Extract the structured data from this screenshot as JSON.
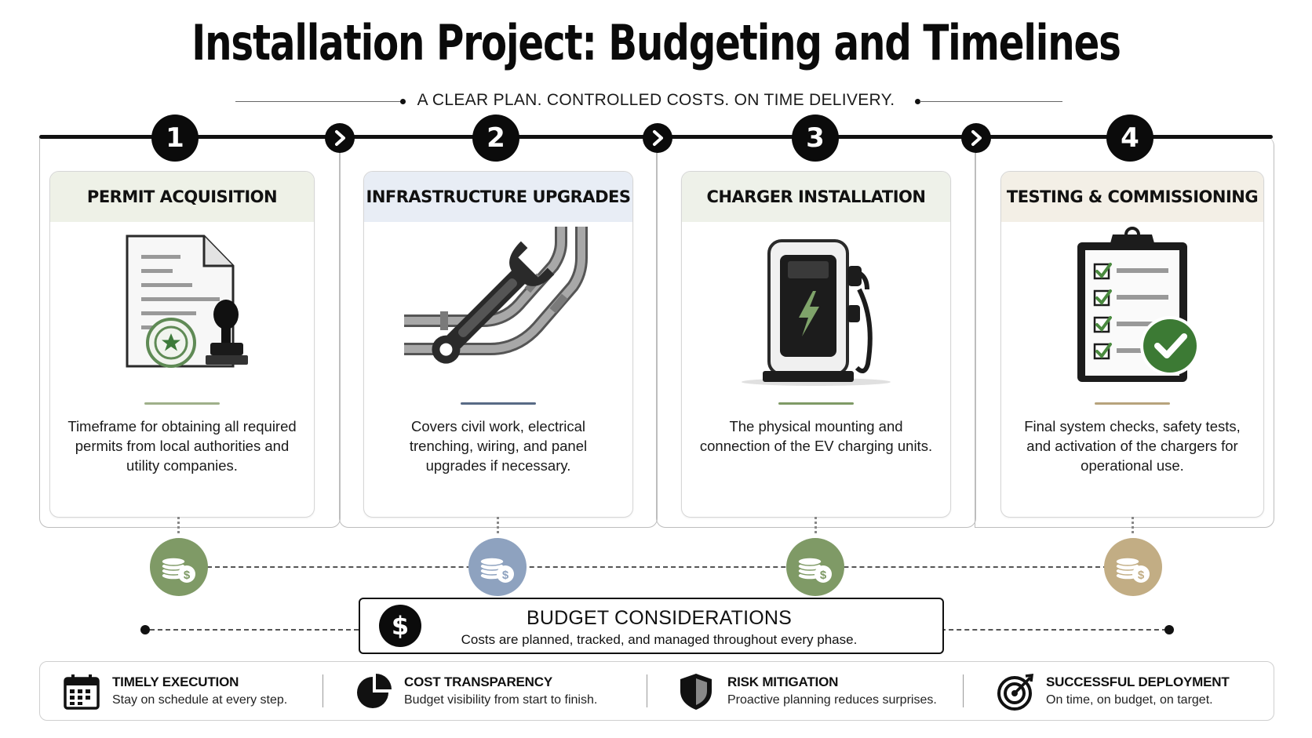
{
  "title": "Installation Project: Budgeting and Timelines",
  "subtitle": "A CLEAR PLAN. CONTROLLED COSTS. ON TIME DELIVERY.",
  "colors": {
    "green": "#7f9a66",
    "blue": "#8ea2bf",
    "tan": "#c2ad84",
    "ink": "#0b0b0b"
  },
  "steps": [
    {
      "number": "1",
      "title": "PERMIT ACQUISITION",
      "icon": "permit-document-stamp-icon",
      "description": "Timeframe for obtaining all required permits from local authorities and utility companies.",
      "head_color": "#eef1e7",
      "accent": "#9fb08a",
      "coin_color": "#7f9a66"
    },
    {
      "number": "2",
      "title": "INFRASTRUCTURE UPGRADES",
      "icon": "wrench-pipes-icon",
      "description": "Covers civil work, electrical trenching, wiring, and panel upgrades if necessary.",
      "head_color": "#e8edf5",
      "accent": "#586a85",
      "coin_color": "#8ea2bf"
    },
    {
      "number": "3",
      "title": "CHARGER INSTALLATION",
      "icon": "ev-charger-icon",
      "description": "The physical mounting and connection of the EV charging units.",
      "head_color": "#eef1e9",
      "accent": "#7f9a66",
      "coin_color": "#7f9a66"
    },
    {
      "number": "4",
      "title": "TESTING & COMMISSIONING",
      "icon": "checklist-clipboard-icon",
      "description": "Final system checks, safety tests, and activation of the chargers for operational use.",
      "head_color": "#f3efe6",
      "accent": "#b7a37c",
      "coin_color": "#c2ad84"
    }
  ],
  "budget": {
    "title": "BUDGET CONSIDERATIONS",
    "subtitle": "Costs are planned, tracked, and managed throughout every phase.",
    "icon": "dollar-icon"
  },
  "footer": [
    {
      "title": "TIMELY EXECUTION",
      "subtitle": "Stay on schedule at every step.",
      "icon": "calendar-icon"
    },
    {
      "title": "COST TRANSPARENCY",
      "subtitle": "Budget visibility from start to finish.",
      "icon": "pie-chart-icon"
    },
    {
      "title": "RISK MITIGATION",
      "subtitle": "Proactive planning reduces surprises.",
      "icon": "shield-icon"
    },
    {
      "title": "SUCCESSFUL DEPLOYMENT",
      "subtitle": "On time, on budget, on target.",
      "icon": "target-icon"
    }
  ]
}
